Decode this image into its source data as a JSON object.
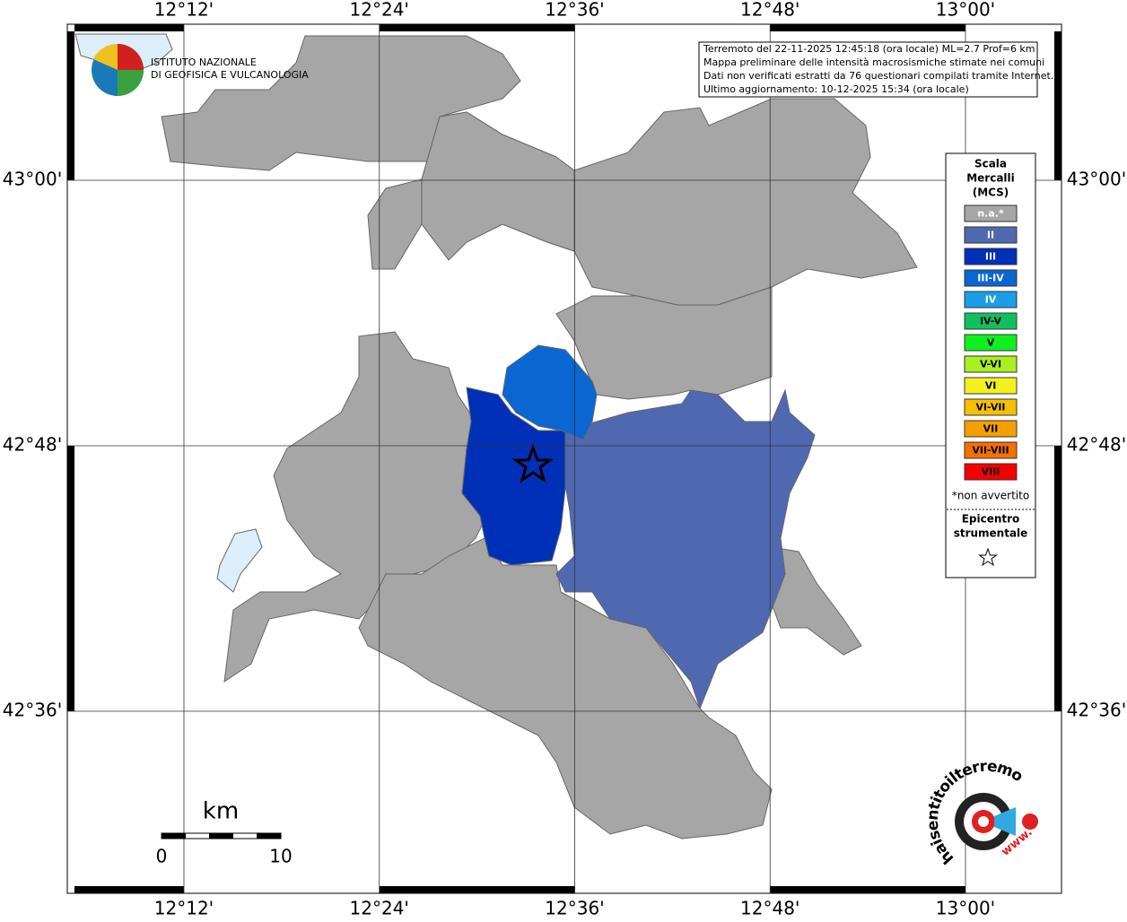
{
  "map": {
    "xlim": [
      12.0806,
      13.0983
    ],
    "ylim": [
      42.4628,
      43.1176
    ],
    "xticks": [
      {
        "value": 12.2,
        "label": "12°12'"
      },
      {
        "value": 12.4,
        "label": "12°24'"
      },
      {
        "value": 12.6,
        "label": "12°36'"
      },
      {
        "value": 12.8,
        "label": "12°48'"
      },
      {
        "value": 13.0,
        "label": "13°00'"
      }
    ],
    "yticks": [
      {
        "value": 43.0,
        "label": "43°00'"
      },
      {
        "value": 42.8,
        "label": "42°48'"
      },
      {
        "value": 42.6,
        "label": "42°36'"
      }
    ],
    "grid": true
  },
  "logo": {
    "line1": "ISTITUTO NAZIONALE",
    "line2": "DI GEOFISICA E VULCANOLOGIA"
  },
  "info": [
    "Terremoto del 22-11-2025 12:45:18 (ora locale) ML=2.7 Prof=6 km",
    "Mappa preliminare delle intensità macrosismiche stimate nei comuni",
    "Dati non verificati estratti da 76 questionari compilati tramite Internet.",
    "Ultimo aggiornamento: 10-12-2025 15:34 (ora locale)"
  ],
  "legend": {
    "title": [
      "Scala",
      "Mercalli",
      "(MCS)"
    ],
    "items": [
      {
        "label": "n.a.*",
        "color": "#a6a6a6"
      },
      {
        "label": "II",
        "color": "#5068b0"
      },
      {
        "label": "III",
        "color": "#0030b8"
      },
      {
        "label": "III-IV",
        "color": "#0a66d0"
      },
      {
        "label": "IV",
        "color": "#1a9ee8"
      },
      {
        "label": "IV-V",
        "color": "#10c060"
      },
      {
        "label": "V",
        "color": "#10f020"
      },
      {
        "label": "V-VI",
        "color": "#a8f020"
      },
      {
        "label": "VI",
        "color": "#f4f020"
      },
      {
        "label": "VI-VII",
        "color": "#f4c000"
      },
      {
        "label": "VII",
        "color": "#f4a000"
      },
      {
        "label": "VII-VIII",
        "color": "#f47000"
      },
      {
        "label": "VIII",
        "color": "#f40000"
      }
    ],
    "note": "*non avvertito",
    "epicentre": [
      "Epicentro",
      "strumentale"
    ]
  },
  "scale_bar": {
    "unit": "km",
    "start": "0",
    "end": "10"
  },
  "site": {
    "name": "haisentitoilterremoto.it",
    "prefix": "www."
  }
}
